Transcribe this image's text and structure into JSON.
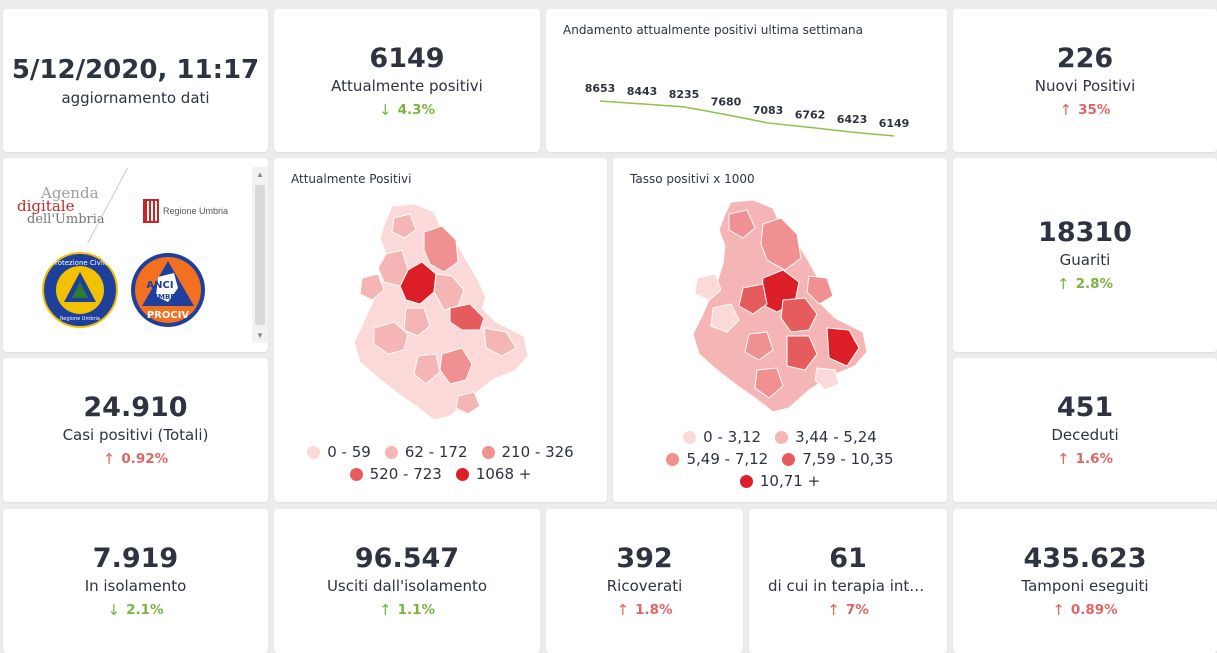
{
  "update": {
    "value": "5/12/2020, 11:17",
    "label": "aggiornamento dati"
  },
  "attualmente_positivi": {
    "value": "6149",
    "label": "Attualmente positivi",
    "arrow": "↓",
    "change": "4.3%"
  },
  "trend": {
    "title": "Andamento attualmente positivi ultima settimana",
    "values": [
      8653,
      8443,
      8235,
      7680,
      7083,
      6762,
      6423,
      6149
    ],
    "labels": [
      "8653",
      "8443",
      "8235",
      "7680",
      "7083",
      "6762",
      "6423",
      "6149"
    ],
    "line_color": "#8bc34a"
  },
  "nuovi_positivi": {
    "value": "226",
    "label": "Nuovi Positivi",
    "arrow": "↑",
    "change": "35%"
  },
  "logos": {
    "agenda_line1": "Agenda",
    "agenda_line2": "digitale",
    "agenda_line3": "dell'Umbria",
    "regione": "Regione Umbria",
    "protezione": "Protezione Civile",
    "protezione_sub": "Regione Umbria",
    "anci_line1": "ANCI",
    "anci_line2": "UMBRIA",
    "anci_line3": "PROCIV"
  },
  "map_positivi": {
    "title": "Attualmente Positivi",
    "legend": [
      {
        "label": "0 - 59",
        "color": "#fbd9d9"
      },
      {
        "label": "62 - 172",
        "color": "#f6b5b5"
      },
      {
        "label": "210 - 326",
        "color": "#f09090"
      },
      {
        "label": "520 - 723",
        "color": "#e65b5b"
      },
      {
        "label": "1068 +",
        "color": "#dc1f26"
      }
    ]
  },
  "map_tasso": {
    "title": "Tasso positivi x 1000",
    "legend": [
      {
        "label": "0 - 3,12",
        "color": "#fbd9d9"
      },
      {
        "label": "3,44 - 5,24",
        "color": "#f6b5b5"
      },
      {
        "label": "5,49 - 7,12",
        "color": "#f09090"
      },
      {
        "label": "7,59 - 10,35",
        "color": "#e65b5b"
      },
      {
        "label": "10,71 +",
        "color": "#dc1f26"
      }
    ]
  },
  "guariti": {
    "value": "18310",
    "label": "Guariti",
    "arrow": "↑",
    "change": "2.8%"
  },
  "casi_totali": {
    "value": "24.910",
    "label": "Casi positivi (Totali)",
    "arrow": "↑",
    "change": "0.92%"
  },
  "deceduti": {
    "value": "451",
    "label": "Deceduti",
    "arrow": "↑",
    "change": "1.6%"
  },
  "isolamento": {
    "value": "7.919",
    "label": "In isolamento",
    "arrow": "↓",
    "change": "2.1%"
  },
  "usciti": {
    "value": "96.547",
    "label": "Usciti dall'isolamento",
    "arrow": "↑",
    "change": "1.1%"
  },
  "ricoverati": {
    "value": "392",
    "label": "Ricoverati",
    "arrow": "↑",
    "change": "1.8%"
  },
  "terapia": {
    "value": "61",
    "label": "di cui in terapia intensiva",
    "arrow": "↑",
    "change": "7%"
  },
  "tamponi": {
    "value": "435.623",
    "label": "Tamponi eseguiti",
    "arrow": "↑",
    "change": "0.89%"
  }
}
